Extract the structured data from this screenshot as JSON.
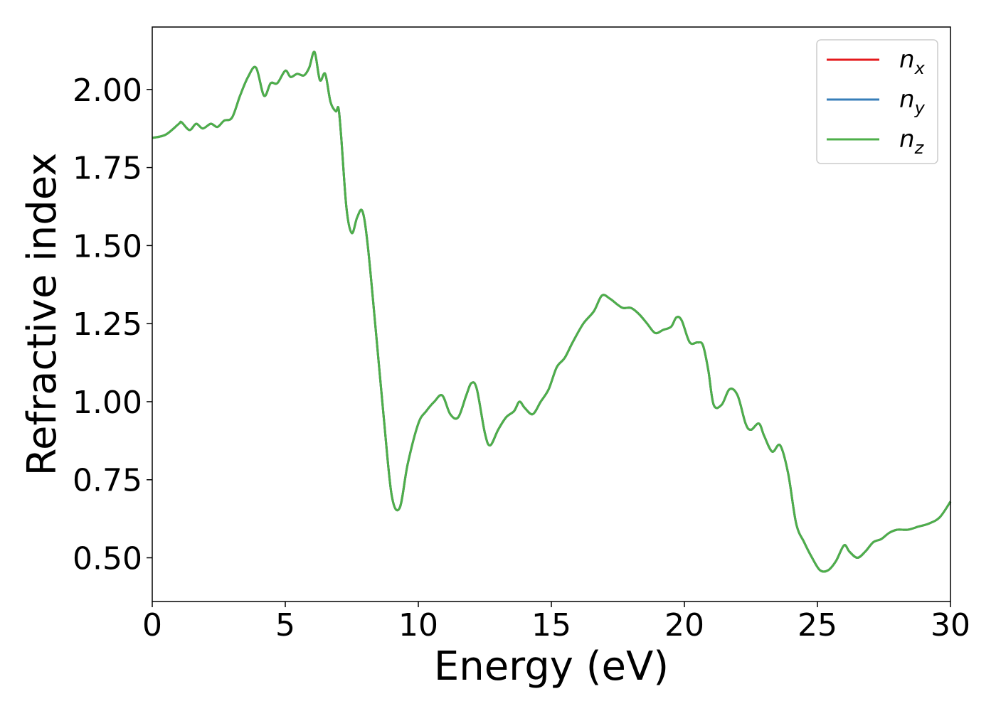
{
  "chart_data": {
    "type": "line",
    "title": "",
    "xlabel": "Energy (eV)",
    "ylabel": "Refractive index",
    "xlim": [
      0,
      30
    ],
    "ylim": [
      0.36,
      2.2
    ],
    "xticks": [
      "0",
      "5",
      "10",
      "15",
      "20",
      "25",
      "30"
    ],
    "yticks": [
      "0.50",
      "0.75",
      "1.00",
      "1.25",
      "1.50",
      "1.75",
      "2.00"
    ],
    "grid": false,
    "legend_position": "top-right",
    "series": [
      {
        "name": "n",
        "subscript": "x",
        "color": "#e41a1c",
        "x": [
          0,
          0.5,
          1.0,
          1.1,
          1.4,
          1.65,
          1.9,
          2.2,
          2.45,
          2.7,
          3.0,
          3.3,
          3.6,
          3.9,
          4.2,
          4.45,
          4.7,
          5.0,
          5.2,
          5.45,
          5.7,
          5.9,
          6.1,
          6.3,
          6.5,
          6.7,
          6.9,
          7.0,
          7.1,
          7.3,
          7.5,
          7.7,
          7.9,
          8.1,
          8.4,
          8.7,
          9.0,
          9.3,
          9.6,
          10.0,
          10.3,
          10.6,
          10.9,
          11.2,
          11.5,
          11.8,
          12.0,
          12.2,
          12.5,
          12.7,
          13.0,
          13.3,
          13.6,
          13.8,
          14.0,
          14.3,
          14.6,
          14.9,
          15.2,
          15.5,
          15.8,
          16.2,
          16.6,
          16.9,
          17.2,
          17.5,
          17.7,
          18.0,
          18.3,
          18.6,
          18.9,
          19.2,
          19.5,
          19.7,
          19.9,
          20.2,
          20.5,
          20.7,
          20.9,
          21.1,
          21.4,
          21.7,
          22.0,
          22.3,
          22.5,
          22.8,
          23.0,
          23.3,
          23.6,
          23.9,
          24.2,
          24.5,
          24.8,
          25.1,
          25.4,
          25.7,
          26.0,
          26.2,
          26.5,
          26.8,
          27.1,
          27.4,
          27.7,
          28.0,
          28.4,
          28.8,
          29.2,
          29.6,
          30.0
        ],
        "y": [
          1.845,
          1.855,
          1.89,
          1.895,
          1.87,
          1.89,
          1.875,
          1.89,
          1.88,
          1.9,
          1.91,
          1.98,
          2.04,
          2.07,
          1.98,
          2.02,
          2.02,
          2.06,
          2.04,
          2.05,
          2.045,
          2.07,
          2.12,
          2.03,
          2.05,
          1.96,
          1.93,
          1.94,
          1.85,
          1.62,
          1.54,
          1.59,
          1.61,
          1.5,
          1.23,
          0.95,
          0.7,
          0.66,
          0.8,
          0.93,
          0.97,
          1.0,
          1.02,
          0.96,
          0.95,
          1.02,
          1.06,
          1.04,
          0.9,
          0.86,
          0.91,
          0.95,
          0.97,
          1.0,
          0.98,
          0.96,
          1.0,
          1.04,
          1.11,
          1.14,
          1.19,
          1.25,
          1.29,
          1.34,
          1.33,
          1.31,
          1.3,
          1.3,
          1.28,
          1.25,
          1.22,
          1.23,
          1.24,
          1.27,
          1.26,
          1.19,
          1.19,
          1.18,
          1.1,
          0.99,
          0.99,
          1.04,
          1.02,
          0.93,
          0.91,
          0.93,
          0.89,
          0.84,
          0.86,
          0.77,
          0.61,
          0.55,
          0.5,
          0.46,
          0.46,
          0.49,
          0.54,
          0.52,
          0.5,
          0.52,
          0.55,
          0.56,
          0.58,
          0.59,
          0.59,
          0.6,
          0.61,
          0.63,
          0.68
        ]
      },
      {
        "name": "n",
        "subscript": "y",
        "color": "#377eb8",
        "x": [
          0,
          0.5,
          1.0,
          1.1,
          1.4,
          1.65,
          1.9,
          2.2,
          2.45,
          2.7,
          3.0,
          3.3,
          3.6,
          3.9,
          4.2,
          4.45,
          4.7,
          5.0,
          5.2,
          5.45,
          5.7,
          5.9,
          6.1,
          6.3,
          6.5,
          6.7,
          6.9,
          7.0,
          7.1,
          7.3,
          7.5,
          7.7,
          7.9,
          8.1,
          8.4,
          8.7,
          9.0,
          9.3,
          9.6,
          10.0,
          10.3,
          10.6,
          10.9,
          11.2,
          11.5,
          11.8,
          12.0,
          12.2,
          12.5,
          12.7,
          13.0,
          13.3,
          13.6,
          13.8,
          14.0,
          14.3,
          14.6,
          14.9,
          15.2,
          15.5,
          15.8,
          16.2,
          16.6,
          16.9,
          17.2,
          17.5,
          17.7,
          18.0,
          18.3,
          18.6,
          18.9,
          19.2,
          19.5,
          19.7,
          19.9,
          20.2,
          20.5,
          20.7,
          20.9,
          21.1,
          21.4,
          21.7,
          22.0,
          22.3,
          22.5,
          22.8,
          23.0,
          23.3,
          23.6,
          23.9,
          24.2,
          24.5,
          24.8,
          25.1,
          25.4,
          25.7,
          26.0,
          26.2,
          26.5,
          26.8,
          27.1,
          27.4,
          27.7,
          28.0,
          28.4,
          28.8,
          29.2,
          29.6,
          30.0
        ],
        "y": [
          1.845,
          1.855,
          1.89,
          1.895,
          1.87,
          1.89,
          1.875,
          1.89,
          1.88,
          1.9,
          1.91,
          1.98,
          2.04,
          2.07,
          1.98,
          2.02,
          2.02,
          2.06,
          2.04,
          2.05,
          2.045,
          2.07,
          2.12,
          2.03,
          2.05,
          1.96,
          1.93,
          1.94,
          1.85,
          1.62,
          1.54,
          1.59,
          1.61,
          1.5,
          1.23,
          0.95,
          0.7,
          0.66,
          0.8,
          0.93,
          0.97,
          1.0,
          1.02,
          0.96,
          0.95,
          1.02,
          1.06,
          1.04,
          0.9,
          0.86,
          0.91,
          0.95,
          0.97,
          1.0,
          0.98,
          0.96,
          1.0,
          1.04,
          1.11,
          1.14,
          1.19,
          1.25,
          1.29,
          1.34,
          1.33,
          1.31,
          1.3,
          1.3,
          1.28,
          1.25,
          1.22,
          1.23,
          1.24,
          1.27,
          1.26,
          1.19,
          1.19,
          1.18,
          1.1,
          0.99,
          0.99,
          1.04,
          1.02,
          0.93,
          0.91,
          0.93,
          0.89,
          0.84,
          0.86,
          0.77,
          0.61,
          0.55,
          0.5,
          0.46,
          0.46,
          0.49,
          0.54,
          0.52,
          0.5,
          0.52,
          0.55,
          0.56,
          0.58,
          0.59,
          0.59,
          0.6,
          0.61,
          0.63,
          0.68
        ]
      },
      {
        "name": "n",
        "subscript": "z",
        "color": "#4daf4a",
        "x": [
          0,
          0.5,
          1.0,
          1.1,
          1.4,
          1.65,
          1.9,
          2.2,
          2.45,
          2.7,
          3.0,
          3.3,
          3.6,
          3.9,
          4.2,
          4.45,
          4.7,
          5.0,
          5.2,
          5.45,
          5.7,
          5.9,
          6.1,
          6.3,
          6.5,
          6.7,
          6.9,
          7.0,
          7.1,
          7.3,
          7.5,
          7.7,
          7.9,
          8.1,
          8.4,
          8.7,
          9.0,
          9.3,
          9.6,
          10.0,
          10.3,
          10.6,
          10.9,
          11.2,
          11.5,
          11.8,
          12.0,
          12.2,
          12.5,
          12.7,
          13.0,
          13.3,
          13.6,
          13.8,
          14.0,
          14.3,
          14.6,
          14.9,
          15.2,
          15.5,
          15.8,
          16.2,
          16.6,
          16.9,
          17.2,
          17.5,
          17.7,
          18.0,
          18.3,
          18.6,
          18.9,
          19.2,
          19.5,
          19.7,
          19.9,
          20.2,
          20.5,
          20.7,
          20.9,
          21.1,
          21.4,
          21.7,
          22.0,
          22.3,
          22.5,
          22.8,
          23.0,
          23.3,
          23.6,
          23.9,
          24.2,
          24.5,
          24.8,
          25.1,
          25.4,
          25.7,
          26.0,
          26.2,
          26.5,
          26.8,
          27.1,
          27.4,
          27.7,
          28.0,
          28.4,
          28.8,
          29.2,
          29.6,
          30.0
        ],
        "y": [
          1.845,
          1.855,
          1.89,
          1.895,
          1.87,
          1.89,
          1.875,
          1.89,
          1.88,
          1.9,
          1.91,
          1.98,
          2.04,
          2.07,
          1.98,
          2.02,
          2.02,
          2.06,
          2.04,
          2.05,
          2.045,
          2.07,
          2.12,
          2.03,
          2.05,
          1.96,
          1.93,
          1.94,
          1.85,
          1.62,
          1.54,
          1.59,
          1.61,
          1.5,
          1.23,
          0.95,
          0.7,
          0.66,
          0.8,
          0.93,
          0.97,
          1.0,
          1.02,
          0.96,
          0.95,
          1.02,
          1.06,
          1.04,
          0.9,
          0.86,
          0.91,
          0.95,
          0.97,
          1.0,
          0.98,
          0.96,
          1.0,
          1.04,
          1.11,
          1.14,
          1.19,
          1.25,
          1.29,
          1.34,
          1.33,
          1.31,
          1.3,
          1.3,
          1.28,
          1.25,
          1.22,
          1.23,
          1.24,
          1.27,
          1.26,
          1.19,
          1.19,
          1.18,
          1.1,
          0.99,
          0.99,
          1.04,
          1.02,
          0.93,
          0.91,
          0.93,
          0.89,
          0.84,
          0.86,
          0.77,
          0.61,
          0.55,
          0.5,
          0.46,
          0.46,
          0.49,
          0.54,
          0.52,
          0.5,
          0.52,
          0.55,
          0.56,
          0.58,
          0.59,
          0.59,
          0.6,
          0.61,
          0.63,
          0.68
        ]
      }
    ]
  }
}
